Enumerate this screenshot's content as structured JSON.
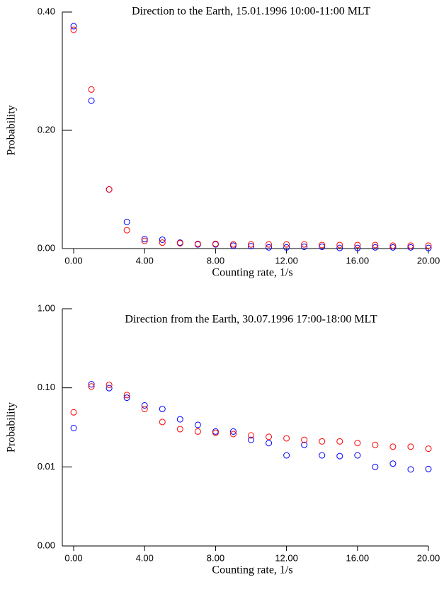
{
  "chart_data": [
    {
      "type": "scatter",
      "title": "Direction to the Earth, 15.01.1996 10:00-11:00 MLT",
      "x_label": "Counting rate, 1/s",
      "y_label": "Probability",
      "x": [
        0,
        1,
        2,
        3,
        4,
        5,
        6,
        7,
        8,
        9,
        10,
        11,
        12,
        13,
        14,
        15,
        16,
        17,
        18,
        19,
        20
      ],
      "series": [
        {
          "color": "#0000ff",
          "values": [
            0.376,
            0.25,
            0.1,
            0.045,
            0.016,
            0.015,
            0.01,
            0.007,
            0.007,
            0.005,
            0.004,
            0.002,
            0.002,
            0.003,
            0.003,
            0.001,
            0.001,
            0.002,
            0.002,
            0.002,
            0.001
          ]
        },
        {
          "color": "#ff0000",
          "values": [
            0.37,
            0.269,
            0.1,
            0.031,
            0.013,
            0.01,
            0.009,
            0.008,
            0.008,
            0.007,
            0.007,
            0.007,
            0.007,
            0.007,
            0.006,
            0.006,
            0.006,
            0.006,
            0.005,
            0.005,
            0.005
          ]
        }
      ],
      "xlim": [
        -0.64,
        20
      ],
      "ylim": [
        0,
        0.4
      ],
      "log_y": false,
      "xticks": [
        {
          "value": 0,
          "label": "0.00"
        },
        {
          "value": 4,
          "label": "4.00"
        },
        {
          "value": 8,
          "label": "8.00"
        },
        {
          "value": 12,
          "label": "12.00"
        },
        {
          "value": 16,
          "label": "16.00"
        },
        {
          "value": 20,
          "label": "20.00"
        }
      ],
      "yticks": [
        {
          "value": 0,
          "label": "0.00"
        },
        {
          "value": 0.2,
          "label": "0.20"
        },
        {
          "value": 0.4,
          "label": "0.40"
        }
      ]
    },
    {
      "type": "scatter",
      "title": "Direction from the Earth, 30.07.1996 17:00-18:00 MLT",
      "x_label": "Counting rate, 1/s",
      "y_label": "Probability",
      "x": [
        0,
        1,
        2,
        3,
        4,
        5,
        6,
        7,
        8,
        9,
        10,
        11,
        12,
        13,
        14,
        15,
        16,
        17,
        18,
        19,
        20
      ],
      "series": [
        {
          "color": "#0000ff",
          "values": [
            0.031,
            0.111,
            0.099,
            0.075,
            0.06,
            0.054,
            0.04,
            0.034,
            0.028,
            0.028,
            0.022,
            0.02,
            0.014,
            0.019,
            0.014,
            0.0137,
            0.014,
            0.01,
            0.011,
            0.0093,
            0.0094
          ]
        },
        {
          "color": "#ff0000",
          "values": [
            0.049,
            0.104,
            0.109,
            0.081,
            0.054,
            0.037,
            0.03,
            0.028,
            0.027,
            0.026,
            0.025,
            0.024,
            0.023,
            0.022,
            0.021,
            0.021,
            0.02,
            0.019,
            0.018,
            0.018,
            0.017
          ]
        }
      ],
      "xlim": [
        -0.64,
        20
      ],
      "ylim": [
        0.001,
        1
      ],
      "log_y": true,
      "xticks": [
        {
          "value": 0,
          "label": "0.00"
        },
        {
          "value": 4,
          "label": "4.00"
        },
        {
          "value": 8,
          "label": "8.00"
        },
        {
          "value": 12,
          "label": "12.00"
        },
        {
          "value": 16,
          "label": "16.00"
        },
        {
          "value": 20,
          "label": "20.00"
        }
      ],
      "yticks": [
        {
          "value": 0.001,
          "label": "0.00"
        },
        {
          "value": 0.01,
          "label": "0.01"
        },
        {
          "value": 0.1,
          "label": "0.10"
        },
        {
          "value": 1,
          "label": "1.00"
        }
      ]
    }
  ]
}
